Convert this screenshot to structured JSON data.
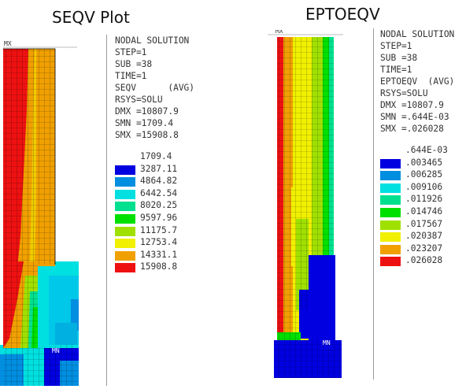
{
  "left": {
    "title": "SEQV Plot",
    "mx_label": "MX",
    "mn_label": "MN",
    "info": {
      "header": "NODAL SOLUTION",
      "step": "STEP=1",
      "sub": "SUB =38",
      "time": "TIME=1",
      "quantity": "SEQV      (AVG)",
      "rsys": "RSYS=SOLU",
      "dmx": "DMX =10807.9",
      "smn": "SMN =1709.4",
      "smx": "SMX =15908.8"
    },
    "legend_min": "1709.4",
    "legend": [
      {
        "label": "3287.11",
        "color": "#0000e0"
      },
      {
        "label": "4864.82",
        "color": "#008ee0"
      },
      {
        "label": "6442.54",
        "color": "#00e0e0"
      },
      {
        "label": "8020.25",
        "color": "#00e08e"
      },
      {
        "label": "9597.96",
        "color": "#00e000"
      },
      {
        "label": "11175.7",
        "color": "#a0e000"
      },
      {
        "label": "12753.4",
        "color": "#f0f000"
      },
      {
        "label": "14331.1",
        "color": "#f0a000"
      },
      {
        "label": "15908.8",
        "color": "#ee1111"
      }
    ]
  },
  "right": {
    "title": "EPTOEQV",
    "mx_label": "MX",
    "mn_label": "MN",
    "info": {
      "header": "NODAL SOLUTION",
      "step": "STEP=1",
      "sub": "SUB =38",
      "time": "TIME=1",
      "quantity": "EPTOEQV  (AVG)",
      "rsys": "RSYS=SOLU",
      "dmx": "DMX =10807.9",
      "smn": "SMN =.644E-03",
      "smx": "SMX =.026028"
    },
    "legend_min": ".644E-03",
    "legend": [
      {
        "label": ".003465",
        "color": "#0000e0"
      },
      {
        "label": ".006285",
        "color": "#008ee0"
      },
      {
        "label": ".009106",
        "color": "#00e0e0"
      },
      {
        "label": ".011926",
        "color": "#00e08e"
      },
      {
        "label": ".014746",
        "color": "#00e000"
      },
      {
        "label": ".017567",
        "color": "#a0e000"
      },
      {
        "label": ".020387",
        "color": "#f0f000"
      },
      {
        "label": ".023207",
        "color": "#f0a000"
      },
      {
        "label": ".026028",
        "color": "#ee1111"
      }
    ]
  }
}
